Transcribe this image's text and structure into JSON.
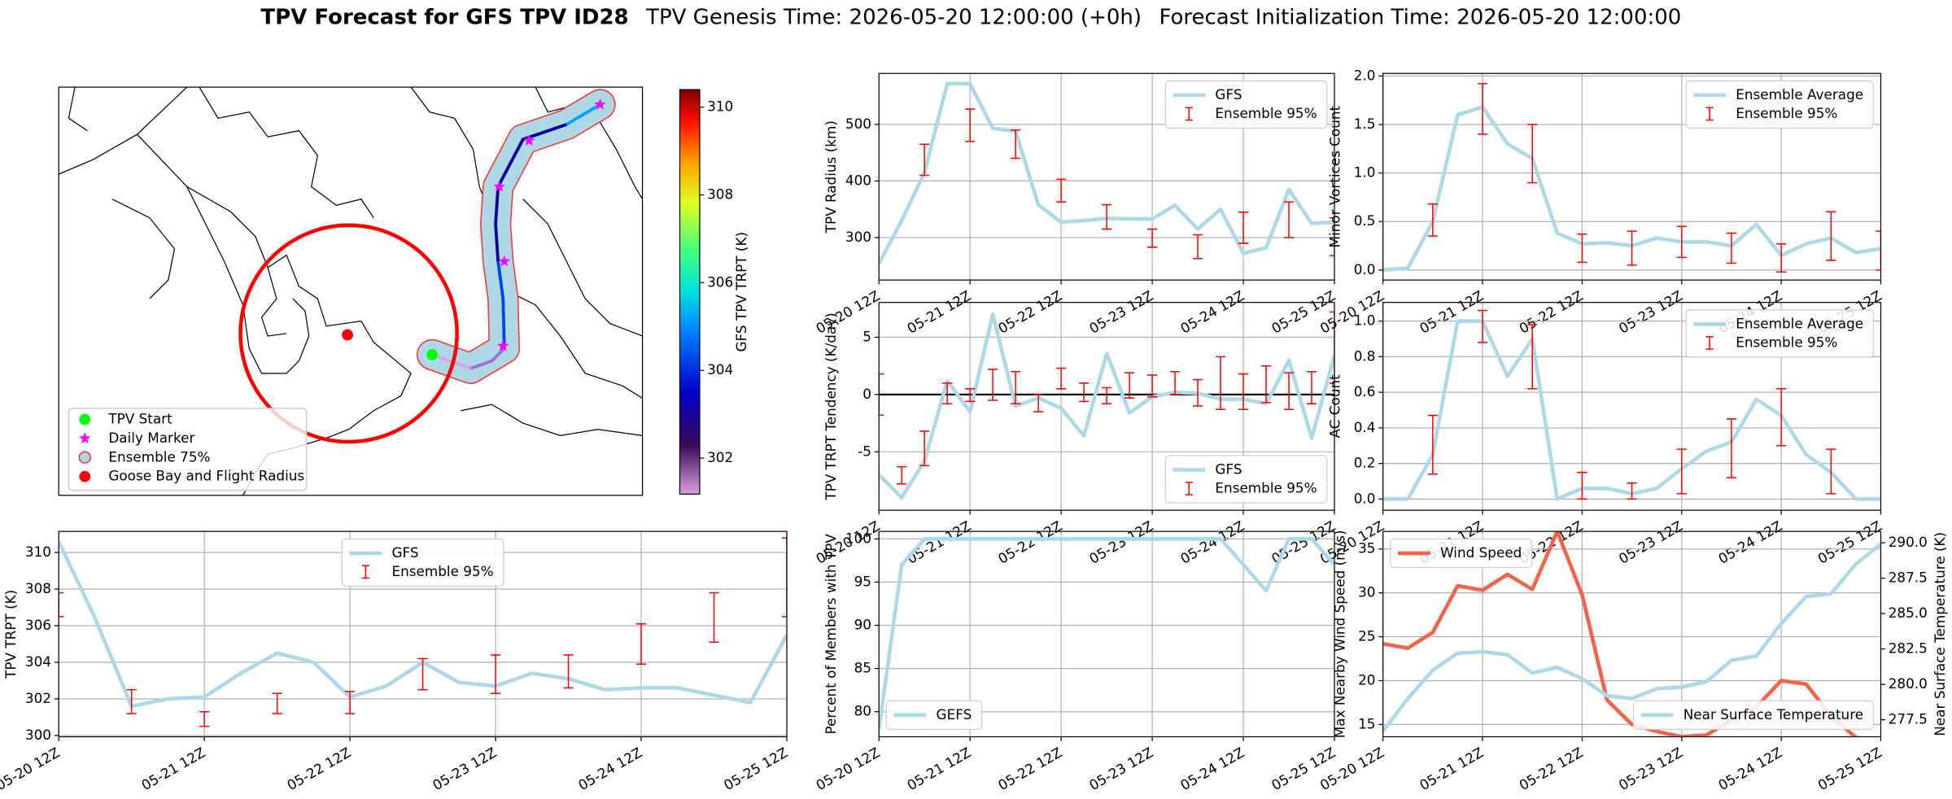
{
  "title_parts": [
    "TPV Forecast for GFS TPV ID28",
    "TPV Genesis Time: 2026-05-20 12:00:00 (+0h)",
    "Forecast Initialization Time: 2026-05-20 12:00:00"
  ],
  "chart_data": [
    {
      "type": "map",
      "legend_loc": "lower left",
      "legend": [
        {
          "label": "TPV Start",
          "marker": "circle",
          "color": "#00ff00"
        },
        {
          "label": "Daily Marker",
          "marker": "star",
          "color": "#ff00ff"
        },
        {
          "label": "Ensemble 75%",
          "marker": "patch",
          "color": "#add8e6"
        },
        {
          "label": "Goose Bay and Flight Radius",
          "marker": "circle",
          "color": "#ff0000"
        }
      ],
      "colorbar": {
        "label": "GFS TPV TRPT (K)",
        "lim": [
          301.18,
          310.4
        ],
        "ticks": [
          302,
          304,
          306,
          308,
          310
        ]
      }
    },
    {
      "type": "line",
      "ylabel": "TPV Radius (km)",
      "grid": true,
      "legend": "upper right",
      "categories": [
        "05-20 12Z",
        null,
        null,
        null,
        "05-21 12Z",
        null,
        null,
        null,
        "05-22 12Z",
        null,
        null,
        null,
        "05-23 12Z",
        null,
        null,
        null,
        "05-24 12Z",
        null,
        null,
        null,
        "05-25 12Z"
      ],
      "ylim": [
        225,
        590
      ],
      "yticks": [
        300,
        400,
        500
      ],
      "series": [
        {
          "name": "GFS",
          "color": "#add8e6",
          "values": [
            254,
            330,
            415,
            572,
            572,
            493,
            488,
            358,
            327,
            330,
            334,
            333,
            333,
            357,
            315,
            350,
            272,
            282,
            385,
            325,
            327
          ]
        }
      ],
      "ensemble": {
        "name": "Ensemble 95%",
        "color": "#ff0000",
        "low": [
          null,
          null,
          410,
          null,
          470,
          null,
          440,
          null,
          363,
          null,
          315,
          null,
          283,
          null,
          263,
          null,
          290,
          null,
          300,
          null,
          268
        ],
        "high": [
          null,
          null,
          465,
          null,
          527,
          null,
          490,
          null,
          403,
          null,
          358,
          null,
          315,
          null,
          305,
          null,
          345,
          null,
          363,
          null,
          335
        ]
      }
    },
    {
      "type": "line",
      "ylabel": "Minor Vortices Count",
      "grid": true,
      "legend": "upper right",
      "categories": [
        "05-20 12Z",
        null,
        null,
        null,
        "05-21 12Z",
        null,
        null,
        null,
        "05-22 12Z",
        null,
        null,
        null,
        "05-23 12Z",
        null,
        null,
        null,
        "05-24 12Z",
        null,
        null,
        null,
        "05-25 12Z"
      ],
      "ylim": [
        -0.103,
        2.026
      ],
      "yticks": [
        {
          "value": 0,
          "label": "0.0"
        },
        0.5,
        {
          "value": 1,
          "label": "1.0"
        },
        1.5,
        {
          "value": 2,
          "label": "2.0"
        }
      ],
      "series": [
        {
          "name": "Ensemble Average",
          "color": "#add8e6",
          "values": [
            0,
            0.02,
            0.5,
            1.6,
            1.68,
            1.3,
            1.15,
            0.38,
            0.27,
            0.28,
            0.25,
            0.33,
            0.29,
            0.29,
            0.25,
            0.47,
            0.15,
            0.27,
            0.33,
            0.18,
            0.22
          ]
        }
      ],
      "ensemble": {
        "name": "Ensemble 95%",
        "color": "#ff0000",
        "low": [
          null,
          null,
          0.35,
          null,
          1.4,
          null,
          0.9,
          null,
          0.08,
          null,
          0.05,
          null,
          0.13,
          null,
          0.07,
          null,
          -0.02,
          null,
          0.1,
          null,
          0.0
        ],
        "high": [
          null,
          null,
          0.68,
          null,
          1.92,
          null,
          1.5,
          null,
          0.37,
          null,
          0.4,
          null,
          0.45,
          null,
          0.38,
          null,
          0.27,
          null,
          0.6,
          null,
          0.4
        ]
      }
    },
    {
      "type": "line",
      "ylabel": "TPV TRPT Tendency (K/day)",
      "grid": true,
      "legend": "lower right",
      "hline": 0,
      "categories": [
        "05-20 12Z",
        null,
        null,
        null,
        "05-21 12Z",
        null,
        null,
        null,
        "05-22 12Z",
        null,
        null,
        null,
        "05-23 12Z",
        null,
        null,
        null,
        "05-24 12Z",
        null,
        null,
        null,
        "05-25 12Z"
      ],
      "ylim": [
        -10.1,
        8.04
      ],
      "yticks": [
        -5,
        0,
        5
      ],
      "series": [
        {
          "name": "GFS",
          "color": "#add8e6",
          "values": [
            -7,
            -9,
            -5.8,
            1.2,
            -1.5,
            7,
            -1.0,
            -0.3,
            -1.2,
            -3.6,
            3.6,
            -1.6,
            -0.2,
            0.2,
            0.1,
            -0.4,
            -0.4,
            -0.8,
            3.0,
            -3.8,
            3.4
          ]
        }
      ],
      "ensemble": {
        "name": "Ensemble 95%",
        "color": "#ff0000",
        "low": [
          -1.8,
          -7.8,
          -6.2,
          -0.8,
          -0.6,
          -0.5,
          -0.8,
          -1.5,
          0.5,
          -0.6,
          -0.8,
          -0.3,
          -0.2,
          0.0,
          -1.0,
          -1.3,
          -1.3,
          -0.7,
          -1.3,
          -0.8,
          1.0
        ],
        "high": [
          1.8,
          -6.3,
          -3.2,
          1.0,
          0.5,
          2.2,
          2.0,
          0.0,
          2.3,
          1.0,
          0.6,
          1.9,
          1.7,
          2.0,
          1.3,
          3.3,
          1.8,
          2.5,
          1.9,
          2.0,
          7.2
        ]
      }
    },
    {
      "type": "line",
      "ylabel": "AC Count",
      "grid": true,
      "legend": "upper right",
      "categories": [
        "05-20 12Z",
        null,
        null,
        null,
        "05-21 12Z",
        null,
        null,
        null,
        "05-22 12Z",
        null,
        null,
        null,
        "05-23 12Z",
        null,
        null,
        null,
        "05-24 12Z",
        null,
        null,
        null,
        "05-25 12Z"
      ],
      "ylim": [
        -0.063,
        1.105
      ],
      "yticks": [
        {
          "value": 0,
          "label": "0.0"
        },
        0.2,
        0.4,
        0.6,
        0.8,
        {
          "value": 1,
          "label": "1.0"
        }
      ],
      "series": [
        {
          "name": "Ensemble Average",
          "color": "#add8e6",
          "values": [
            0,
            0,
            0.25,
            1.0,
            1.0,
            0.69,
            0.9,
            0.0,
            0.06,
            0.06,
            0.03,
            0.06,
            0.17,
            0.27,
            0.32,
            0.56,
            0.47,
            0.25,
            0.15,
            0.0,
            0.0
          ]
        }
      ],
      "ensemble": {
        "name": "Ensemble 95%",
        "color": "#ff0000",
        "low": [
          null,
          null,
          0.14,
          null,
          0.88,
          null,
          0.62,
          null,
          0.0,
          null,
          0.0,
          null,
          0.03,
          null,
          0.12,
          null,
          0.3,
          null,
          0.03,
          null,
          null
        ],
        "high": [
          null,
          null,
          0.47,
          null,
          1.06,
          null,
          0.98,
          null,
          0.15,
          null,
          0.09,
          null,
          0.28,
          null,
          0.45,
          null,
          0.62,
          null,
          0.28,
          null,
          null
        ]
      }
    },
    {
      "type": "line",
      "ylabel": "TPV TRPT (K)",
      "grid": true,
      "legend": "upper center",
      "categories": [
        "05-20 12Z",
        null,
        null,
        null,
        "05-21 12Z",
        null,
        null,
        null,
        "05-22 12Z",
        null,
        null,
        null,
        "05-23 12Z",
        null,
        null,
        null,
        "05-24 12Z",
        null,
        null,
        null,
        "05-25 12Z"
      ],
      "ylim": [
        299.93,
        311.15
      ],
      "yticks": [
        300,
        302,
        304,
        306,
        308,
        310
      ],
      "series": [
        {
          "name": "GFS",
          "color": "#add8e6",
          "values": [
            310.6,
            306.4,
            301.6,
            302.0,
            302.1,
            303.4,
            304.5,
            304.0,
            302.1,
            302.7,
            304.0,
            302.9,
            302.7,
            303.4,
            303.1,
            302.5,
            302.6,
            302.6,
            302.2,
            301.8,
            305.5
          ]
        }
      ],
      "ensemble": {
        "name": "Ensemble 95%",
        "color": "#ff0000",
        "low": [
          306.5,
          null,
          301.2,
          null,
          300.5,
          null,
          301.2,
          null,
          301.2,
          null,
          302.5,
          null,
          302.3,
          null,
          302.6,
          null,
          303.9,
          null,
          305.1,
          null,
          306.5
        ],
        "high": [
          307.8,
          null,
          302.5,
          null,
          301.3,
          null,
          302.3,
          null,
          302.4,
          null,
          304.2,
          null,
          304.4,
          null,
          304.4,
          null,
          306.1,
          null,
          307.8,
          null,
          310.8
        ]
      }
    },
    {
      "type": "line",
      "ylabel": "Percent of Members with TPV",
      "grid": true,
      "legend": "lower left",
      "categories": [
        "05-20 12Z",
        null,
        null,
        null,
        "05-21 12Z",
        null,
        null,
        null,
        "05-22 12Z",
        null,
        null,
        null,
        "05-23 12Z",
        null,
        null,
        null,
        "05-24 12Z",
        null,
        null,
        null,
        "05-25 12Z"
      ],
      "ylim": [
        77.1,
        100.86
      ],
      "yticks": [
        80,
        85,
        90,
        95,
        100
      ],
      "series": [
        {
          "name": "GEFS",
          "color": "#add8e6",
          "values": [
            78,
            97,
            100,
            100,
            100,
            100,
            100,
            100,
            100,
            100,
            100,
            100,
            100,
            100,
            100,
            100,
            97,
            94,
            100,
            100,
            97
          ]
        }
      ]
    },
    {
      "type": "line",
      "ylabel": "Max Nearby Wind Speed (m/s)",
      "y2label": "Near Surface Temperature (K)",
      "ylabel_color": "#f26449",
      "y2label_color": "#4169e1",
      "grid": true,
      "categories": [
        "05-20 12Z",
        null,
        null,
        null,
        "05-21 12Z",
        null,
        null,
        null,
        "05-22 12Z",
        null,
        null,
        null,
        "05-23 12Z",
        null,
        null,
        null,
        "05-24 12Z",
        null,
        null,
        null,
        "05-25 12Z"
      ],
      "ylim": [
        13.6,
        37
      ],
      "yticks": [
        15,
        20,
        25,
        30,
        35
      ],
      "y2lim": [
        276.3,
        290.8
      ],
      "y2ticks": [
        {
          "value": 277.5,
          "label": "277.5"
        },
        {
          "value": 280,
          "label": "280.0"
        },
        {
          "value": 282.5,
          "label": "282.5"
        },
        {
          "value": 285,
          "label": "285.0"
        },
        {
          "value": 287.5,
          "label": "287.5"
        },
        {
          "value": 290,
          "label": "290.0"
        }
      ],
      "series": [
        {
          "name": "Wind Speed",
          "color": "#f26449",
          "legend": "upper left",
          "values": [
            24.2,
            23.7,
            25.5,
            30.8,
            30.3,
            32.1,
            30.4,
            37.0,
            29.8,
            17.8,
            15.0,
            14.2,
            13.6,
            13.8,
            15.5,
            17.0,
            20.0,
            19.6,
            16.0,
            13.5,
            13.2
          ]
        },
        {
          "name": "Near Surface Temperature",
          "color": "#add8e6",
          "axis": "y2",
          "legend": "lower right",
          "values": [
            276.7,
            279.0,
            281.0,
            282.2,
            282.3,
            282.1,
            280.8,
            281.2,
            280.4,
            279.2,
            279.0,
            279.7,
            279.8,
            280.2,
            281.7,
            282.0,
            284.3,
            286.2,
            286.4,
            288.5,
            289.9
          ]
        }
      ]
    }
  ]
}
